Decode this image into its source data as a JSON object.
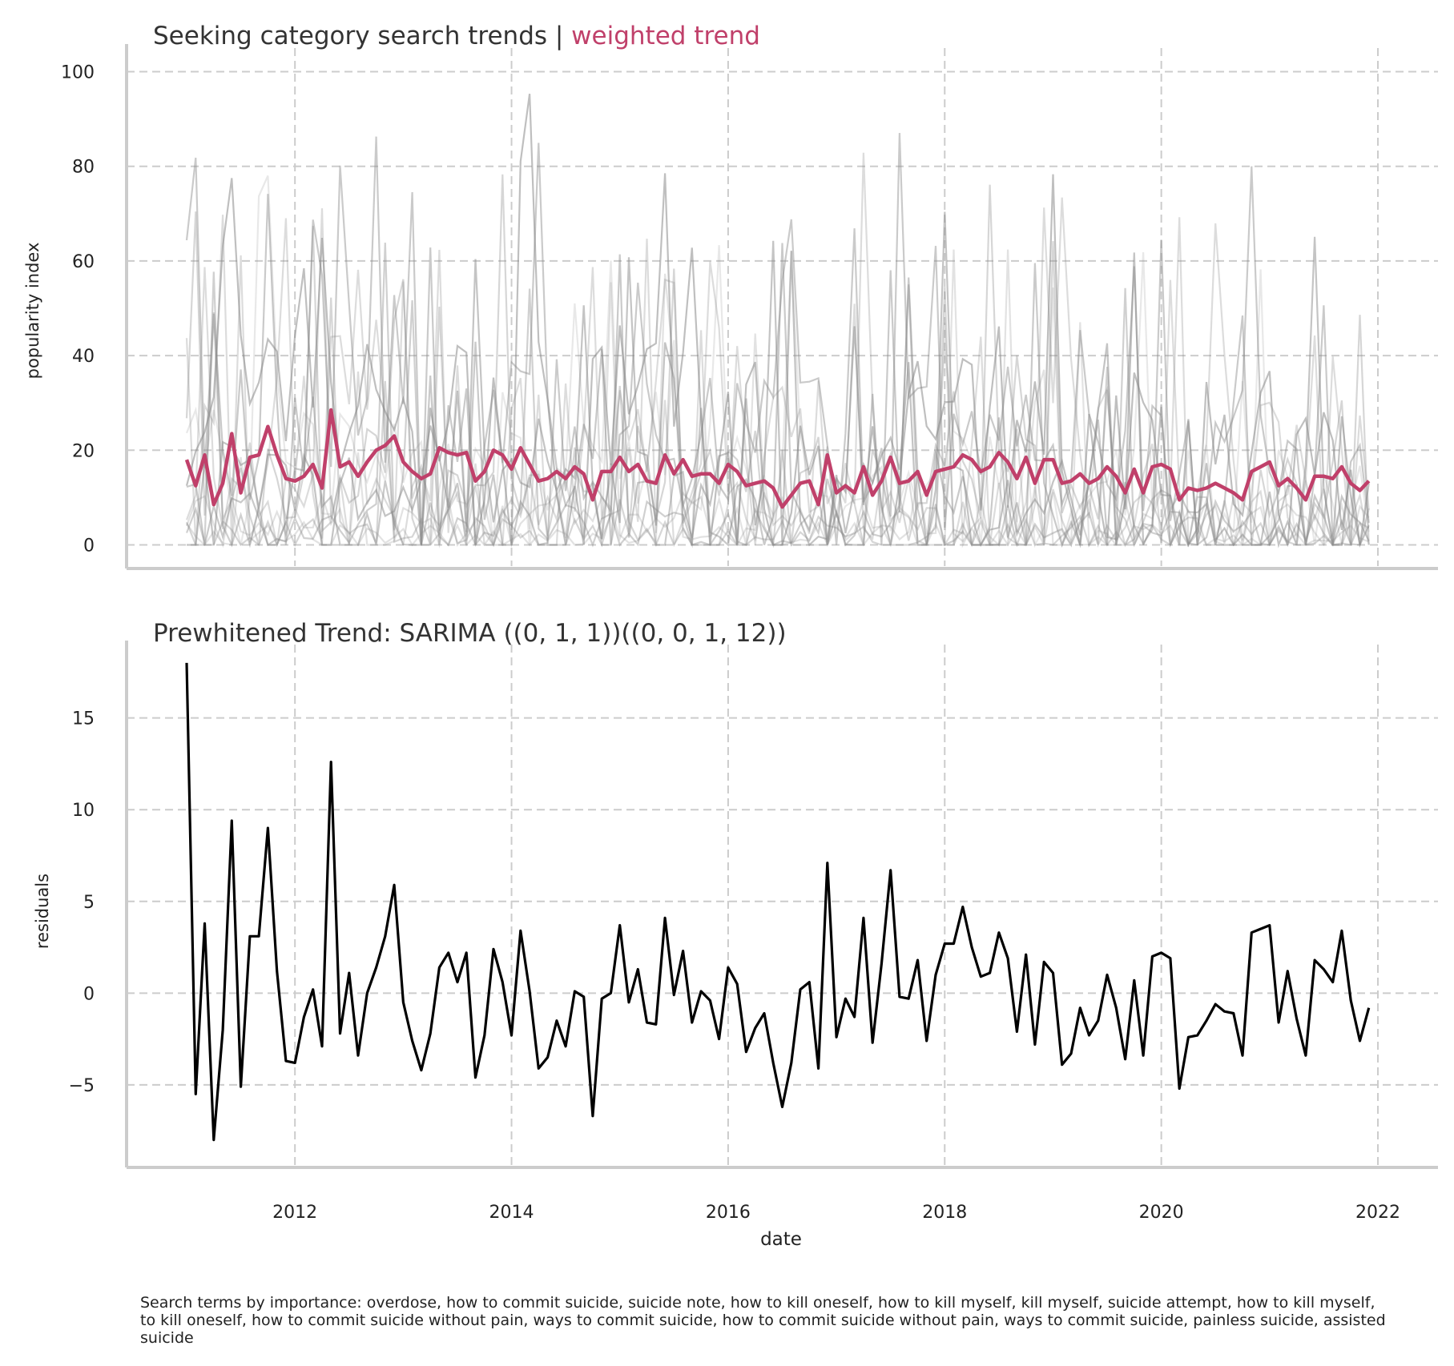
{
  "footnote": "Search terms by importance: overdose, how to commit suicide, suicide note, how to kill oneself, how to kill myself, kill myself, suicide attempt, how to kill myself, to kill oneself, how to commit suicide without pain, ways to commit suicide, how to commit suicide without pain, ways to commit suicide, painless suicide, assisted suicide",
  "colors": {
    "accent": "#c0406a",
    "residual": "#000000",
    "background_series": "#999999"
  },
  "chart_data": [
    {
      "type": "line",
      "title": "Seeking category search trends | ",
      "title_highlight": "weighted trend",
      "xlabel": "",
      "ylabel": "popularity index",
      "xlim": [
        "2010-06",
        "2022-07"
      ],
      "ylim": [
        -5,
        105
      ],
      "yticks": [
        0,
        20,
        40,
        60,
        80,
        100
      ],
      "xticks": [
        "2012",
        "2014",
        "2016",
        "2018",
        "2020",
        "2022"
      ],
      "grid": true,
      "x_start": "2011-01",
      "x_end": "2022-01",
      "series": [
        {
          "values": [
            18,
            12.5,
            19,
            8.5,
            13,
            23.5,
            11,
            18.5,
            19,
            25,
            19,
            14,
            13.5,
            14.5,
            17,
            12,
            28.5,
            16.5,
            17.5,
            14.5,
            17.5,
            20,
            21,
            23,
            17.5,
            15.5,
            14,
            15,
            20.5,
            19.5,
            19,
            19.5,
            13.5,
            15.5,
            20,
            19,
            16,
            20.5,
            17,
            13.5,
            14,
            15.5,
            14,
            16.5,
            15,
            9.5,
            15.5,
            15.5,
            18.5,
            15.5,
            17,
            13.5,
            13,
            19,
            15,
            18,
            14.5,
            15,
            15,
            13,
            17,
            15.5,
            12.5,
            13,
            13.5,
            12,
            8,
            10.5,
            13,
            13.5,
            8.5,
            19,
            11,
            12.5,
            11,
            16.5,
            10.5,
            13.5,
            18.5,
            13,
            13.5,
            15.5,
            10.5,
            15.5,
            16,
            16.5,
            19,
            18,
            15.5,
            16.5,
            19.5,
            17.5,
            14,
            18.5,
            13,
            18,
            18,
            13,
            13.5,
            15,
            13,
            14,
            16.5,
            14.5,
            11,
            16,
            11,
            16.5,
            17,
            16,
            9.5,
            12,
            11.5,
            12,
            13,
            12,
            11,
            9.5,
            15.5,
            16.5,
            17.5,
            12.5,
            14,
            12,
            9.5,
            14.5,
            14.5,
            14,
            16.5,
            13,
            11.5,
            13.5
          ]
        }
      ]
    },
    {
      "type": "line",
      "title": "Prewhitened Trend: SARIMA ((0, 1, 1))((0, 0, 1, 12))",
      "xlabel": "date",
      "ylabel": "residuals",
      "xlim": [
        "2010-06",
        "2022-07"
      ],
      "ylim": [
        -9.5,
        19
      ],
      "yticks": [
        -5,
        0,
        5,
        10,
        15
      ],
      "ytick_labels": [
        "−5",
        "0",
        "5",
        "10",
        "15"
      ],
      "xticks": [
        "2012",
        "2014",
        "2016",
        "2018",
        "2020",
        "2022"
      ],
      "grid": true,
      "x_start": "2011-01",
      "x_end": "2022-01",
      "series": [
        {
          "values": [
            18,
            -5.5,
            3.8,
            -8,
            -2,
            9.4,
            -5.1,
            3.1,
            3.1,
            9,
            1.2,
            -3.7,
            -3.8,
            -1.3,
            0.2,
            -2.9,
            12.6,
            -2.2,
            1.1,
            -3.4,
            0,
            1.4,
            3.1,
            5.9,
            -0.5,
            -2.6,
            -4.2,
            -2.2,
            1.4,
            2.2,
            0.6,
            2.2,
            -4.6,
            -2.3,
            2.4,
            0.6,
            -2.3,
            3.4,
            0.1,
            -4.1,
            -3.5,
            -1.5,
            -2.9,
            0.1,
            -0.2,
            -6.7,
            -0.3,
            0,
            3.7,
            -0.5,
            1.3,
            -1.6,
            -1.7,
            4.1,
            -0.1,
            2.3,
            -1.6,
            0.1,
            -0.4,
            -2.5,
            1.4,
            0.5,
            -3.2,
            -1.9,
            -1.1,
            -3.8,
            -6.2,
            -3.8,
            0.2,
            0.6,
            -4.1,
            7.1,
            -2.4,
            -0.3,
            -1.3,
            4.1,
            -2.7,
            1.6,
            6.7,
            -0.2,
            -0.3,
            1.8,
            -2.6,
            1,
            2.7,
            2.7,
            4.7,
            2.5,
            0.9,
            1.1,
            3.3,
            1.9,
            -2.1,
            2.1,
            -2.8,
            1.7,
            1.1,
            -3.9,
            -3.3,
            -0.8,
            -2.3,
            -1.5,
            1,
            -0.8,
            -3.6,
            0.7,
            -3.4,
            2,
            2.2,
            1.9,
            -5.2,
            -2.4,
            -2.3,
            -1.5,
            -0.6,
            -1,
            -1.1,
            -3.4,
            3.3,
            3.5,
            3.7,
            -1.6,
            1.2,
            -1.4,
            -3.4,
            1.8,
            1.3,
            0.6,
            3.4,
            -0.4,
            -2.6,
            -0.8
          ]
        }
      ]
    }
  ]
}
